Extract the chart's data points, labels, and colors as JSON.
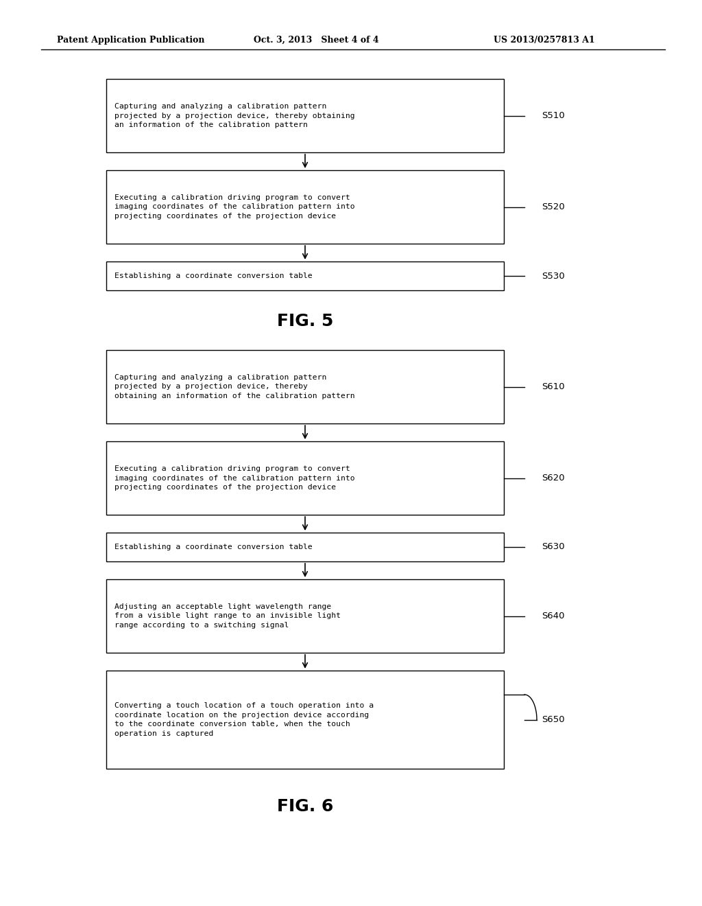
{
  "header_left": "Patent Application Publication",
  "header_mid": "Oct. 3, 2013   Sheet 4 of 4",
  "header_right": "US 2013/0257813 A1",
  "fig5_label": "FIG. 5",
  "fig6_label": "FIG. 6",
  "fig5_boxes": [
    {
      "id": "S510",
      "label": "S510",
      "text": "Capturing and analyzing a calibration pattern\nprojected by a projection device, thereby obtaining\nan information of the calibration pattern"
    },
    {
      "id": "S520",
      "label": "S520",
      "text": "Executing a calibration driving program to convert\nimaging coordinates of the calibration pattern into\nprojecting coordinates of the projection device"
    },
    {
      "id": "S530",
      "label": "S530",
      "text": "Establishing a coordinate conversion table"
    }
  ],
  "fig6_boxes": [
    {
      "id": "S610",
      "label": "S610",
      "text": "Capturing and analyzing a calibration pattern\nprojected by a projection device, thereby\nobtaining an information of the calibration pattern"
    },
    {
      "id": "S620",
      "label": "S620",
      "text": "Executing a calibration driving program to convert\nimaging coordinates of the calibration pattern into\nprojecting coordinates of the projection device"
    },
    {
      "id": "S630",
      "label": "S630",
      "text": "Establishing a coordinate conversion table"
    },
    {
      "id": "S640",
      "label": "S640",
      "text": "Adjusting an acceptable light wavelength range\nfrom a visible light range to an invisible light\nrange according to a switching signal"
    },
    {
      "id": "S650",
      "label": "S650",
      "text": "Converting a touch location of a touch operation into a\ncoordinate location on the projection device according\nto the coordinate conversion table, when the touch\noperation is captured"
    }
  ],
  "bg_color": "#ffffff",
  "box_edge_color": "#000000",
  "text_color": "#000000",
  "arrow_color": "#000000"
}
